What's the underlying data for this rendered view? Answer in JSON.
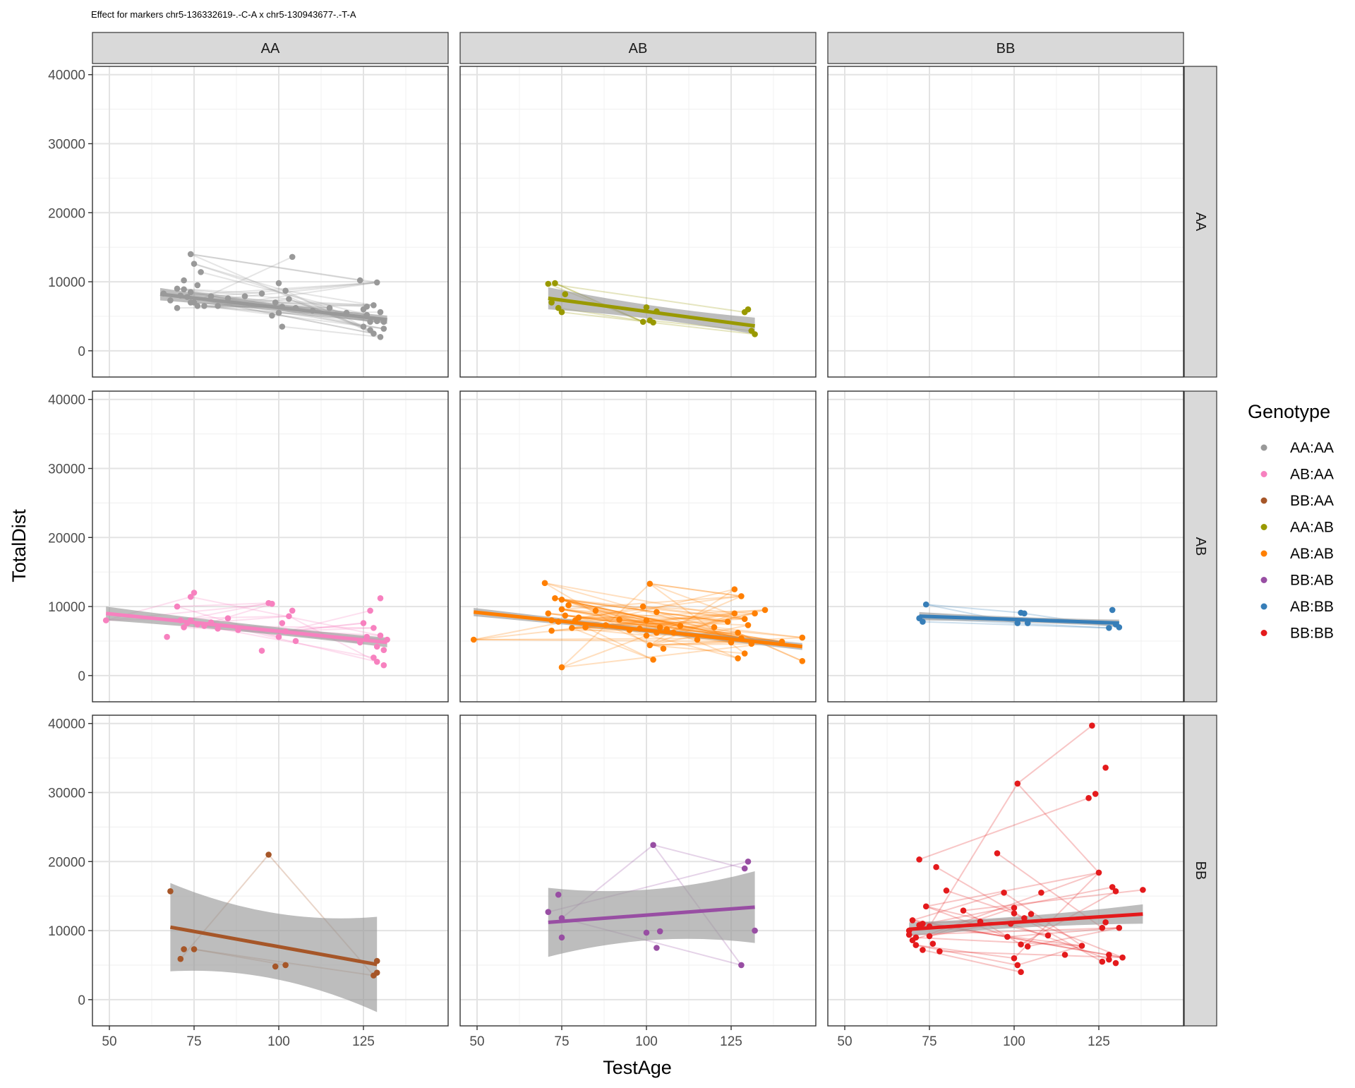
{
  "chart_data": {
    "type": "scatter",
    "title": "Effect for markers chr5-136332619-.-C-A x chr5-130943677-.-T-A",
    "xlabel": "TestAge",
    "ylabel": "TotalDist",
    "xlim": [
      45,
      150
    ],
    "ylim": [
      -3800,
      41200
    ],
    "x_ticks": [
      50,
      75,
      100,
      125
    ],
    "y_ticks": [
      0,
      10000,
      20000,
      30000,
      40000
    ],
    "col_strips": [
      "AA",
      "AB",
      "BB"
    ],
    "row_strips": [
      "AA",
      "AB",
      "BB"
    ],
    "grid": true,
    "legend": {
      "title": "Genotype",
      "position": "right",
      "entries": [
        "AA:AA",
        "AB:AA",
        "BB:AA",
        "AA:AB",
        "AB:AB",
        "BB:AB",
        "AB:BB",
        "BB:BB"
      ]
    },
    "panels": [
      {
        "row": "AA",
        "col": "AA",
        "genotype": "AA:AA",
        "color": "#999999",
        "fit": {
          "x": [
            65,
            132
          ],
          "y": [
            8200,
            4500
          ]
        },
        "band": [
          900,
          600
        ],
        "x": [
          66,
          68,
          70,
          71,
          72,
          73,
          74,
          74,
          75,
          75,
          76,
          77,
          78,
          80,
          82,
          85,
          90,
          95,
          98,
          99,
          100,
          100,
          101,
          101,
          102,
          103,
          104,
          105,
          110,
          115,
          120,
          124,
          125,
          126,
          127,
          127,
          128,
          128,
          129,
          129,
          130,
          130,
          131,
          131,
          125,
          126,
          74,
          76,
          72,
          70
        ],
        "y": [
          8300,
          7300,
          9000,
          8000,
          10200,
          7800,
          8500,
          14000,
          12600,
          7000,
          9500,
          11400,
          6500,
          7900,
          6500,
          7600,
          7900,
          8300,
          5100,
          7000,
          9800,
          5500,
          6400,
          3500,
          8700,
          7500,
          13600,
          6200,
          5800,
          6200,
          5500,
          10200,
          6000,
          5200,
          4200,
          3000,
          6600,
          2500,
          4300,
          9900,
          5600,
          2000,
          4200,
          3200,
          3500,
          6400,
          7000,
          6500,
          8900,
          6200
        ],
        "segments": 70
      },
      {
        "row": "AA",
        "col": "AB",
        "genotype": "AA:AB",
        "color": "#999900",
        "fit": {
          "x": [
            71,
            132
          ],
          "y": [
            7600,
            3600
          ]
        },
        "band": [
          1600,
          1200
        ],
        "x": [
          71,
          72,
          73,
          74,
          75,
          76,
          99,
          100,
          101,
          102,
          103,
          129,
          130,
          131,
          132
        ],
        "y": [
          9700,
          7000,
          9800,
          6200,
          5600,
          8200,
          4200,
          6300,
          4400,
          4100,
          5700,
          5600,
          6000,
          2900,
          2400
        ],
        "segments": 8
      },
      {
        "row": "AA",
        "col": "BB",
        "genotype": null,
        "color": null,
        "fit": null,
        "band": null,
        "x": [],
        "y": [],
        "segments": 0
      },
      {
        "row": "AB",
        "col": "AA",
        "genotype": "AB:AA",
        "color": "#f781bf",
        "fit": {
          "x": [
            49,
            132
          ],
          "y": [
            9000,
            4800
          ]
        },
        "band": [
          1000,
          700
        ],
        "x": [
          49,
          67,
          70,
          71,
          72,
          73,
          74,
          74,
          75,
          76,
          78,
          80,
          82,
          85,
          88,
          95,
          97,
          98,
          100,
          101,
          102,
          103,
          104,
          105,
          124,
          125,
          126,
          127,
          128,
          128,
          129,
          129,
          130,
          130,
          131,
          131,
          132
        ],
        "y": [
          8000,
          5600,
          10000,
          8000,
          7000,
          7600,
          8000,
          11400,
          12000,
          7400,
          7200,
          7700,
          6800,
          8300,
          6600,
          3600,
          10500,
          10400,
          5600,
          7600,
          6400,
          8600,
          9400,
          5000,
          4800,
          7600,
          5600,
          9400,
          2600,
          6900,
          2000,
          4200,
          5800,
          11200,
          3700,
          1500,
          5200
        ],
        "segments": 45
      },
      {
        "row": "AB",
        "col": "AB",
        "genotype": "AB:AB",
        "color": "#ff7f00",
        "fit": {
          "x": [
            49,
            146
          ],
          "y": [
            9200,
            4200
          ]
        },
        "band": [
          600,
          500
        ],
        "x": [
          49,
          70,
          71,
          72,
          72,
          73,
          74,
          75,
          75,
          76,
          77,
          78,
          79,
          80,
          82,
          85,
          88,
          92,
          95,
          98,
          99,
          100,
          100,
          101,
          102,
          103,
          103,
          104,
          105,
          106,
          108,
          110,
          115,
          120,
          124,
          125,
          126,
          127,
          127,
          128,
          128,
          129,
          129,
          130,
          131,
          132,
          135,
          140,
          146,
          146,
          75,
          101,
          126
        ],
        "y": [
          5200,
          13400,
          9000,
          8000,
          6500,
          11200,
          7800,
          9600,
          1200,
          8700,
          10200,
          6900,
          8000,
          8400,
          7000,
          9400,
          7300,
          8100,
          6600,
          6800,
          10000,
          5800,
          8000,
          4400,
          2300,
          9200,
          6200,
          7000,
          3900,
          6700,
          6200,
          7200,
          5200,
          7000,
          7800,
          4800,
          12500,
          6200,
          2500,
          5400,
          11500,
          3200,
          8200,
          7300,
          4600,
          9000,
          9500,
          4900,
          2100,
          5500,
          11000,
          13300,
          9000
        ],
        "segments": 150
      },
      {
        "row": "AB",
        "col": "BB",
        "genotype": "AB:BB",
        "color": "#377eb8",
        "fit": {
          "x": [
            72,
            131
          ],
          "y": [
            8600,
            7600
          ]
        },
        "band": [
          600,
          500
        ],
        "x": [
          72,
          73,
          74,
          101,
          102,
          103,
          104,
          128,
          129,
          130,
          131
        ],
        "y": [
          8300,
          7800,
          10300,
          7600,
          9100,
          9000,
          7600,
          6900,
          9500,
          7400,
          7000
        ],
        "segments": 6
      },
      {
        "row": "BB",
        "col": "AA",
        "genotype": "BB:AA",
        "color": "#a65628",
        "fit": {
          "x": [
            68,
            129
          ],
          "y": [
            10500,
            5100
          ]
        },
        "band": [
          6400,
          6900
        ],
        "x": [
          68,
          71,
          72,
          75,
          97,
          99,
          102,
          128,
          129,
          129
        ],
        "y": [
          15700,
          5900,
          7300,
          7300,
          21000,
          4800,
          5000,
          3500,
          5600,
          3900
        ],
        "segments": 6
      },
      {
        "row": "BB",
        "col": "AB",
        "genotype": "BB:AB",
        "color": "#984ea3",
        "fit": {
          "x": [
            71,
            132
          ],
          "y": [
            11200,
            13400
          ]
        },
        "band": [
          5000,
          5200
        ],
        "x": [
          71,
          74,
          75,
          75,
          100,
          102,
          103,
          104,
          128,
          129,
          130,
          132
        ],
        "y": [
          12700,
          15200,
          11800,
          9000,
          9700,
          22400,
          7500,
          9900,
          5000,
          19000,
          20000,
          10000
        ],
        "segments": 7
      },
      {
        "row": "BB",
        "col": "BB",
        "genotype": "BB:BB",
        "color": "#e41a1c",
        "fit": {
          "x": [
            69,
            138
          ],
          "y": [
            10200,
            12400
          ]
        },
        "band": [
          1000,
          1400
        ],
        "x": [
          69,
          70,
          70,
          71,
          72,
          72,
          73,
          74,
          75,
          76,
          77,
          78,
          80,
          85,
          90,
          95,
          97,
          98,
          99,
          100,
          100,
          101,
          101,
          102,
          103,
          104,
          105,
          108,
          110,
          115,
          120,
          122,
          123,
          124,
          125,
          126,
          127,
          127,
          128,
          129,
          130,
          130,
          131,
          132,
          138,
          69,
          71,
          73,
          75,
          100,
          102,
          126,
          128
        ],
        "y": [
          10000,
          11500,
          8600,
          9000,
          20300,
          10800,
          7200,
          13500,
          10600,
          8100,
          19200,
          7000,
          15800,
          12900,
          11300,
          21200,
          15500,
          9100,
          11000,
          6000,
          13300,
          31300,
          5000,
          4000,
          11800,
          7700,
          12400,
          15500,
          9300,
          6500,
          7800,
          29200,
          39700,
          29800,
          18400,
          5500,
          33600,
          11200,
          6500,
          16300,
          15700,
          5300,
          10400,
          6100,
          15900,
          9400,
          7900,
          11000,
          9200,
          12500,
          8000,
          10400,
          5800
        ],
        "segments": 60
      }
    ]
  }
}
